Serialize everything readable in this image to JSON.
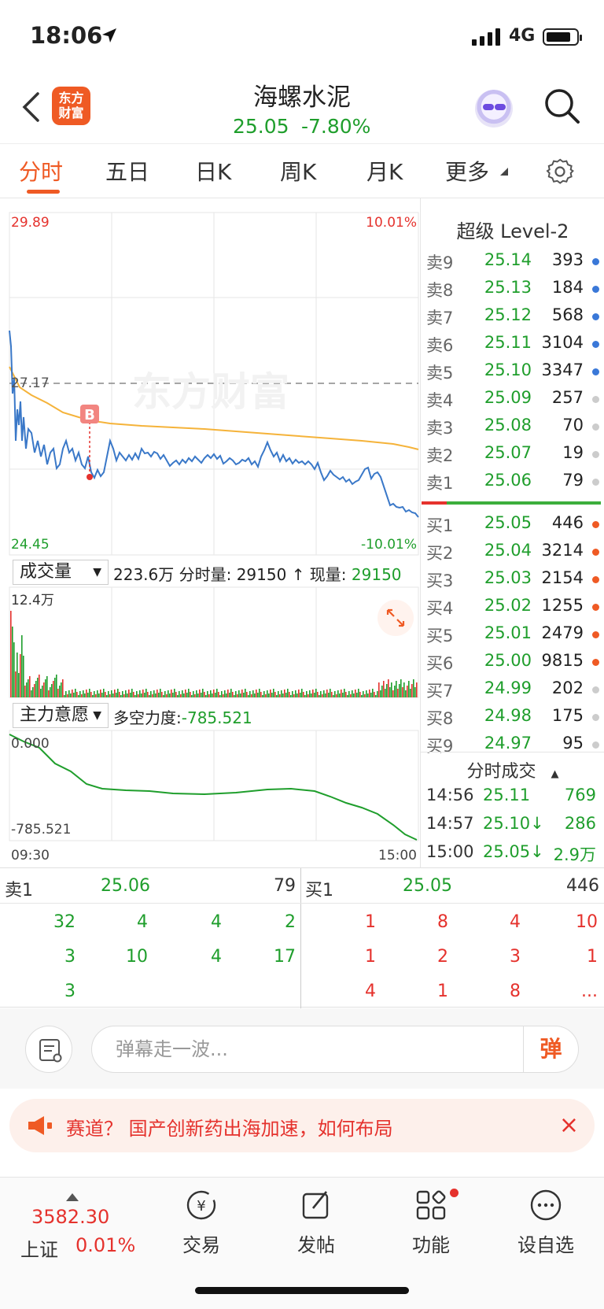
{
  "status": {
    "time": "18:06",
    "network": "4G"
  },
  "header": {
    "logo": "东方\n财富",
    "name": "海螺水泥",
    "price": "25.05",
    "change": "-7.80%"
  },
  "tabs": [
    {
      "label": "分时"
    },
    {
      "label": "五日"
    },
    {
      "label": "日K"
    },
    {
      "label": "周K"
    },
    {
      "label": "月K"
    },
    {
      "label": "更多"
    }
  ],
  "chart": {
    "price_high": "29.89",
    "price_low": "24.45",
    "pct_high": "10.01%",
    "pct_low": "-10.01%",
    "prev_close": "27.17",
    "watermark": "东方财富",
    "trade_marker": "B",
    "vol_max": "12.4万",
    "main_high": "0.000",
    "main_low": "-785.521",
    "time_start": "09:30",
    "time_end": "15:00"
  },
  "volume_panel": {
    "select_label": "成交量",
    "summary": "223.6万 分时量: 29150 ↑ 现量: ",
    "current": "29150"
  },
  "main_panel": {
    "select_label": "主力意愿",
    "summary": "多空力度:",
    "value": "-785.521"
  },
  "level2": {
    "title": "超级 Level-2",
    "asks": [
      {
        "label": "卖9",
        "price": "25.14",
        "vol": "393",
        "dot": "#3a78d8"
      },
      {
        "label": "卖8",
        "price": "25.13",
        "vol": "184",
        "dot": "#3a78d8"
      },
      {
        "label": "卖7",
        "price": "25.12",
        "vol": "568",
        "dot": "#3a78d8"
      },
      {
        "label": "卖6",
        "price": "25.11",
        "vol": "3104",
        "dot": "#3a78d8"
      },
      {
        "label": "卖5",
        "price": "25.10",
        "vol": "3347",
        "dot": "#3a78d8"
      },
      {
        "label": "卖4",
        "price": "25.09",
        "vol": "257",
        "dot": "#cccccc"
      },
      {
        "label": "卖3",
        "price": "25.08",
        "vol": "70",
        "dot": "#cccccc"
      },
      {
        "label": "卖2",
        "price": "25.07",
        "vol": "19",
        "dot": "#cccccc"
      },
      {
        "label": "卖1",
        "price": "25.06",
        "vol": "79",
        "dot": "#cccccc"
      }
    ],
    "bids": [
      {
        "label": "买1",
        "price": "25.05",
        "vol": "446",
        "dot": "#ef5a24"
      },
      {
        "label": "买2",
        "price": "25.04",
        "vol": "3214",
        "dot": "#ef5a24"
      },
      {
        "label": "买3",
        "price": "25.03",
        "vol": "2154",
        "dot": "#ef5a24"
      },
      {
        "label": "买4",
        "price": "25.02",
        "vol": "1255",
        "dot": "#ef5a24"
      },
      {
        "label": "买5",
        "price": "25.01",
        "vol": "2479",
        "dot": "#ef5a24"
      },
      {
        "label": "买6",
        "price": "25.00",
        "vol": "9815",
        "dot": "#ef5a24"
      },
      {
        "label": "买7",
        "price": "24.99",
        "vol": "202",
        "dot": "#cccccc"
      },
      {
        "label": "买8",
        "price": "24.98",
        "vol": "175",
        "dot": "#cccccc"
      },
      {
        "label": "买9",
        "price": "24.97",
        "vol": "95",
        "dot": "#cccccc"
      }
    ],
    "ticks_title": "分时成交",
    "ticks": [
      {
        "time": "14:56",
        "price": "25.11",
        "vol": "769"
      },
      {
        "time": "14:57",
        "price": "25.10↓",
        "vol": "286"
      },
      {
        "time": "15:00",
        "price": "25.05↓",
        "vol": "2.9万"
      }
    ]
  },
  "queue": {
    "ask_label": "卖1",
    "ask_price": "25.06",
    "ask_vol": "79",
    "bid_label": "买1",
    "bid_price": "25.05",
    "bid_vol": "446",
    "ask_cells": [
      [
        "32",
        "4",
        "4",
        "2"
      ],
      [
        "3",
        "10",
        "4",
        "17"
      ],
      [
        "3",
        "",
        "",
        ""
      ]
    ],
    "bid_cells": [
      [
        "1",
        "8",
        "4",
        "10"
      ],
      [
        "1",
        "2",
        "3",
        "1"
      ],
      [
        "4",
        "1",
        "8",
        "..."
      ]
    ]
  },
  "comment": {
    "placeholder": "弹幕走一波...",
    "danmu": "弹"
  },
  "news": {
    "text": "赛道？    国产创新药出海加速，如何布局"
  },
  "bottom": {
    "index_value": "3582.30",
    "index_name": "上证",
    "index_change": "0.01%",
    "items": [
      {
        "label": "交易"
      },
      {
        "label": "发帖"
      },
      {
        "label": "功能"
      },
      {
        "label": "设自选"
      }
    ]
  },
  "colors": {
    "accent": "#ef5a24",
    "up": "#e5322d",
    "down": "#1f9e2c",
    "price_line": "#3a78c8",
    "avg_line": "#f5b33a"
  }
}
